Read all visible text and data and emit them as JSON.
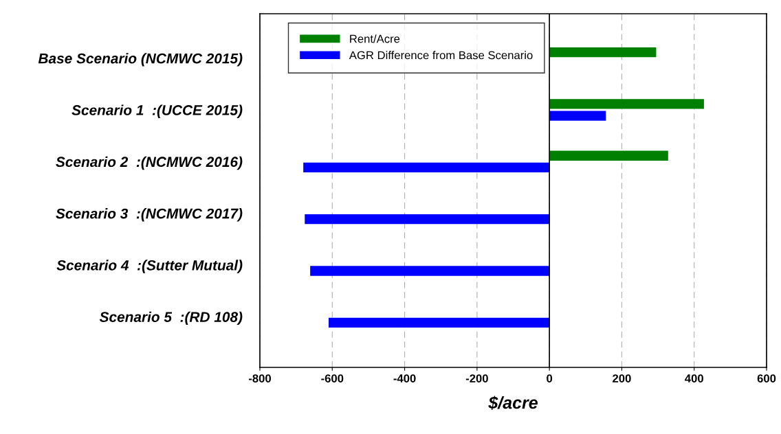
{
  "chart_data": {
    "type": "bar",
    "orientation": "horizontal",
    "xlabel": "$/acre",
    "categories": [
      "Base Scenario (NCMWC 2015)",
      "Scenario 1  :(UCCE 2015)",
      "Scenario 2  :(NCMWC 2016)",
      "Scenario 3  :(NCMWC 2017)",
      "Scenario 4  :(Sutter Mutual)",
      "Scenario 5  :(RD 108)"
    ],
    "series": [
      {
        "name": "Rent/Acre",
        "color": "#008000",
        "values": [
          295,
          427,
          328,
          null,
          null,
          null
        ]
      },
      {
        "name": "AGR Difference from Base Scenario",
        "color": "#0000ff",
        "values": [
          null,
          156,
          -680,
          -676,
          -661,
          -610
        ]
      }
    ],
    "xlim": [
      -800,
      600
    ],
    "xticks": [
      -800,
      -600,
      -400,
      -200,
      0,
      200,
      400,
      600
    ],
    "grid": "x",
    "legend": "top left",
    "ref_lines": [
      {
        "axis": "x",
        "value": 0,
        "color": "#000000",
        "line_style": "solid"
      }
    ]
  }
}
